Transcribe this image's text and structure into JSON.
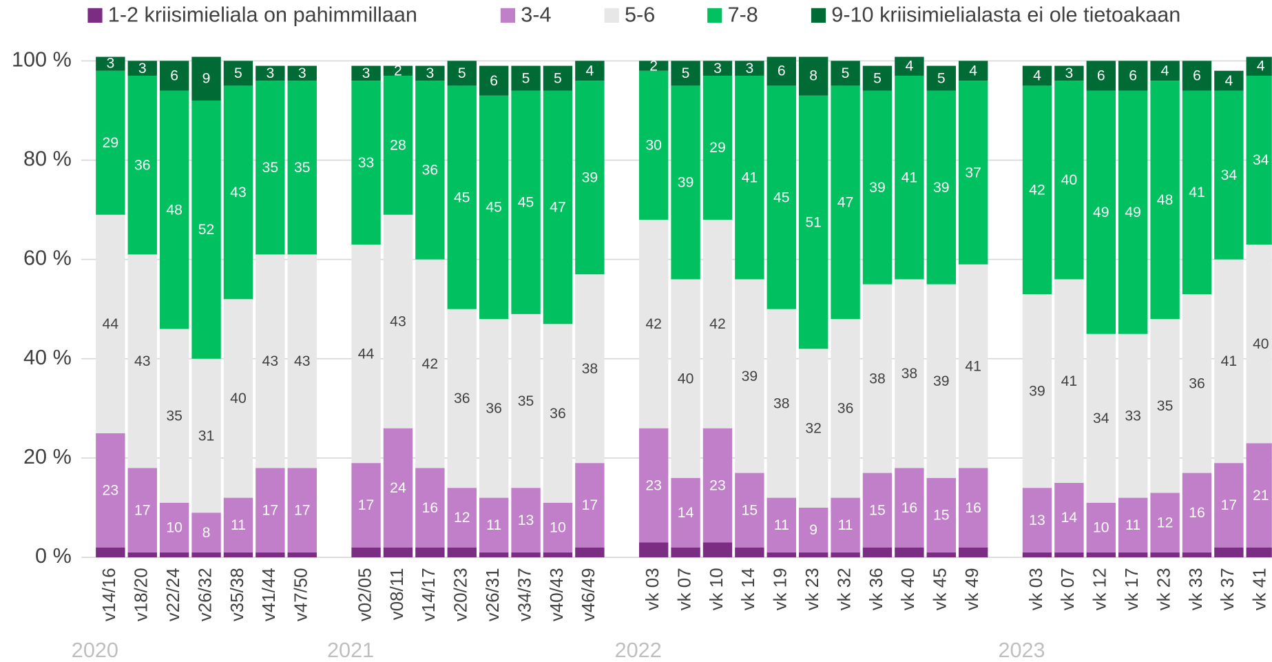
{
  "chart_data": {
    "type": "stacked_bar",
    "groups": [
      {
        "name": "2020",
        "categories": [
          "v14/16",
          "v18/20",
          "v22/24",
          "v26/32",
          "v35/38",
          "v41/44",
          "v47/50"
        ]
      },
      {
        "name": "2021",
        "categories": [
          "v02/05",
          "v08/11",
          "v14/17",
          "v20/23",
          "v26/31",
          "v34/37",
          "v40/43",
          "v46/49"
        ]
      },
      {
        "name": "2022",
        "categories": [
          "vk 03",
          "vk 07",
          "vk 10",
          "vk 14",
          "vk 19",
          "vk 23",
          "vk 32",
          "vk 36",
          "vk 40",
          "vk 45",
          "vk 49"
        ]
      },
      {
        "name": "2023",
        "categories": [
          "vk 03",
          "vk 07",
          "vk 12",
          "vk 17",
          "vk 23",
          "vk 33",
          "vk 37",
          "vk 41"
        ]
      }
    ],
    "series": [
      {
        "name": "1-2 kriisimieliala on pahimmillaan",
        "color": "#7b2d83",
        "label_color": "#ffffff",
        "show_labels": false,
        "values": [
          2,
          1,
          1,
          1,
          1,
          1,
          1,
          2,
          2,
          2,
          2,
          1,
          1,
          1,
          2,
          3,
          2,
          3,
          2,
          1,
          1,
          1,
          2,
          2,
          1,
          2,
          1,
          1,
          1,
          1,
          1,
          1,
          2,
          2
        ]
      },
      {
        "name": "3-4",
        "color": "#c17fc9",
        "label_color": "#ffffff",
        "show_labels": true,
        "values": [
          23,
          17,
          10,
          8,
          11,
          17,
          17,
          17,
          24,
          16,
          12,
          11,
          13,
          10,
          17,
          23,
          14,
          23,
          15,
          11,
          9,
          11,
          15,
          16,
          15,
          16,
          13,
          14,
          10,
          11,
          12,
          16,
          17,
          21
        ]
      },
      {
        "name": "5-6",
        "color": "#e7e7e7",
        "label_color": "#404040",
        "show_labels": true,
        "values": [
          44,
          43,
          35,
          31,
          40,
          43,
          43,
          44,
          43,
          42,
          36,
          36,
          35,
          36,
          38,
          42,
          40,
          42,
          39,
          38,
          32,
          36,
          38,
          38,
          39,
          41,
          39,
          41,
          34,
          33,
          35,
          36,
          41,
          40
        ]
      },
      {
        "name": "7-8",
        "color": "#00c060",
        "label_color": "#ffffff",
        "show_labels": true,
        "values": [
          29,
          36,
          48,
          52,
          43,
          35,
          35,
          33,
          28,
          36,
          45,
          45,
          45,
          47,
          39,
          30,
          39,
          29,
          41,
          45,
          51,
          47,
          39,
          41,
          39,
          37,
          42,
          40,
          49,
          49,
          48,
          41,
          34,
          34
        ]
      },
      {
        "name": "9-10 kriisimielialasta ei ole tietoakaan",
        "color": "#006b35",
        "label_color": "#ffffff",
        "show_labels": true,
        "values": [
          3,
          3,
          6,
          9,
          5,
          3,
          3,
          3,
          2,
          3,
          5,
          6,
          5,
          5,
          4,
          2,
          5,
          3,
          3,
          6,
          8,
          5,
          5,
          4,
          5,
          4,
          4,
          3,
          6,
          6,
          4,
          6,
          4,
          4
        ]
      }
    ],
    "ylim": [
      0,
      100
    ],
    "yticks": [
      {
        "value": 0,
        "label": "0 %"
      },
      {
        "value": 20,
        "label": "20 %"
      },
      {
        "value": 40,
        "label": "40 %"
      },
      {
        "value": 60,
        "label": "60 %"
      },
      {
        "value": 80,
        "label": "80 %"
      },
      {
        "value": 100,
        "label": "100 %"
      }
    ],
    "grid": true,
    "legend": "top"
  }
}
